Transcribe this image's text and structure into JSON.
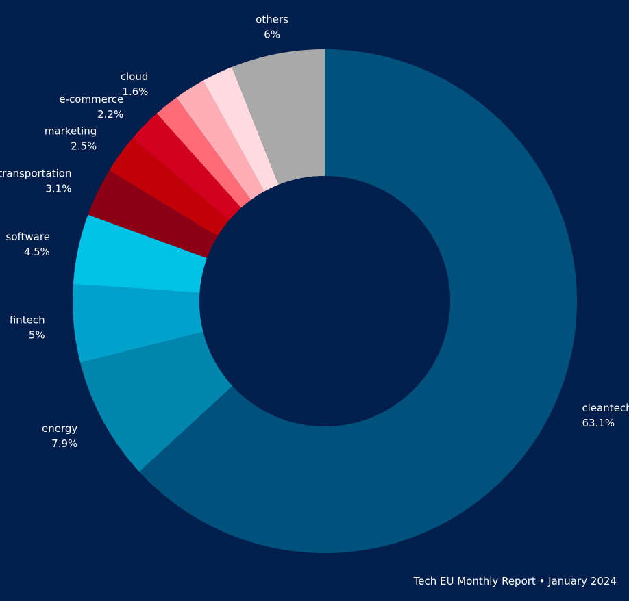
{
  "chart_data": {
    "type": "pie",
    "donut": true,
    "slices": [
      {
        "name": "cleantech",
        "value": 63.1,
        "label": "63.1%",
        "color": "#00527c"
      },
      {
        "name": "energy",
        "value": 7.9,
        "label": "7.9%",
        "color": "#0086ad"
      },
      {
        "name": "fintech",
        "value": 5,
        "label": "5%",
        "color": "#00a2cc"
      },
      {
        "name": "software",
        "value": 4.5,
        "label": "4.5%",
        "color": "#00c2e6"
      },
      {
        "name": "transportation",
        "value": 3.1,
        "label": "3.1%",
        "color": "#8b0015"
      },
      {
        "name": "marketing",
        "value": 2.5,
        "label": "2.5%",
        "color": "#c10007"
      },
      {
        "name": "e-commerce",
        "value": 2.2,
        "label": "2.2%",
        "color": "#d2001c"
      },
      {
        "name": "cloud",
        "value": 1.6,
        "label": "1.6%",
        "color": "#ff6b76"
      },
      {
        "name": "others",
        "value": 6,
        "label": "6%",
        "color": "#a9a9a9"
      }
    ],
    "extra_slices": [
      {
        "value": 2.0,
        "color": "#ffaeb5"
      },
      {
        "value": 2.0,
        "color": "#ffdbe0"
      }
    ],
    "start_angle_deg": 0,
    "direction": "clockwise"
  },
  "footer": {
    "text": "Tech EU Monthly Report • January 2024"
  },
  "colors": {
    "background": "#001f4d",
    "hole": "#001f4d",
    "text": "#ffffff"
  }
}
